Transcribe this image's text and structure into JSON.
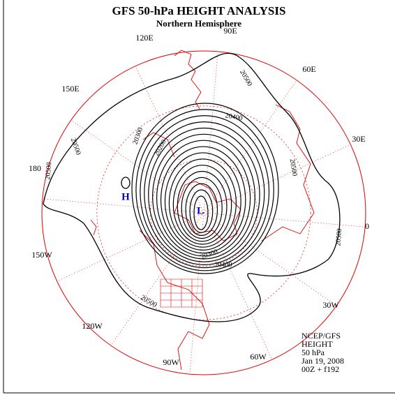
{
  "header": {
    "title": "GFS 50-hPa HEIGHT ANALYSIS",
    "subtitle": "Northern Hemisphere"
  },
  "longitude_labels": [
    "90E",
    "60E",
    "30E",
    "0",
    "30W",
    "60W",
    "90W",
    "120W",
    "150W",
    "180",
    "150E",
    "120E"
  ],
  "contour_labels": [
    "20500",
    "20500",
    "20500",
    "20500",
    "20500",
    "20500",
    "20400",
    "20300",
    "20200",
    "20400",
    "20300"
  ],
  "markers": {
    "high": "H",
    "low": "L"
  },
  "footer": [
    "NCEP/GFS",
    "HEIGHT",
    "50 hPa",
    "Jan 19, 2008",
    "00Z + f192"
  ]
}
